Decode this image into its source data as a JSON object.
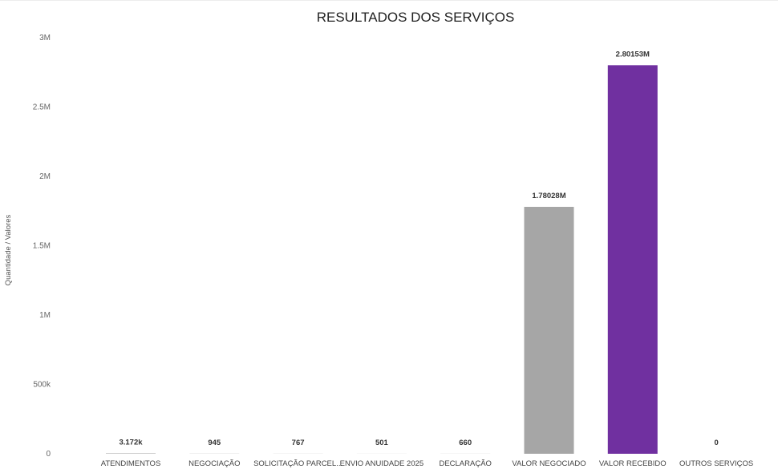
{
  "chart_data": {
    "type": "bar",
    "title": "RESULTADOS DOS SERVIÇOS",
    "xlabel": "",
    "ylabel": "Quantidade / Valores",
    "ylim": [
      0,
      3000000
    ],
    "y_ticks": [
      0,
      500000,
      1000000,
      1500000,
      2000000,
      2500000,
      3000000
    ],
    "y_tick_labels": [
      "0",
      "500k",
      "1M",
      "1.5M",
      "2M",
      "2.5M",
      "3M"
    ],
    "grid": false,
    "categories": [
      "ATENDIMENTOS",
      "NEGOCIAÇÃO",
      "SOLICITAÇÃO PARCEL...",
      "ENVIO ANUIDADE 2025",
      "DECLARAÇÃO",
      "VALOR NEGOCIADO",
      "VALOR RECEBIDO",
      "OUTROS SERVIÇOS"
    ],
    "values": [
      3172,
      945,
      767,
      501,
      660,
      1780280,
      2801530,
      0
    ],
    "data_labels": [
      "3.172k",
      "945",
      "767",
      "501",
      "660",
      "1.78028M",
      "2.80153M",
      "0"
    ],
    "colors": [
      "#a6a6a6",
      "#a6a6a6",
      "#a6a6a6",
      "#a6a6a6",
      "#a6a6a6",
      "#a6a6a6",
      "#7030a0",
      "#a6a6a6"
    ]
  }
}
